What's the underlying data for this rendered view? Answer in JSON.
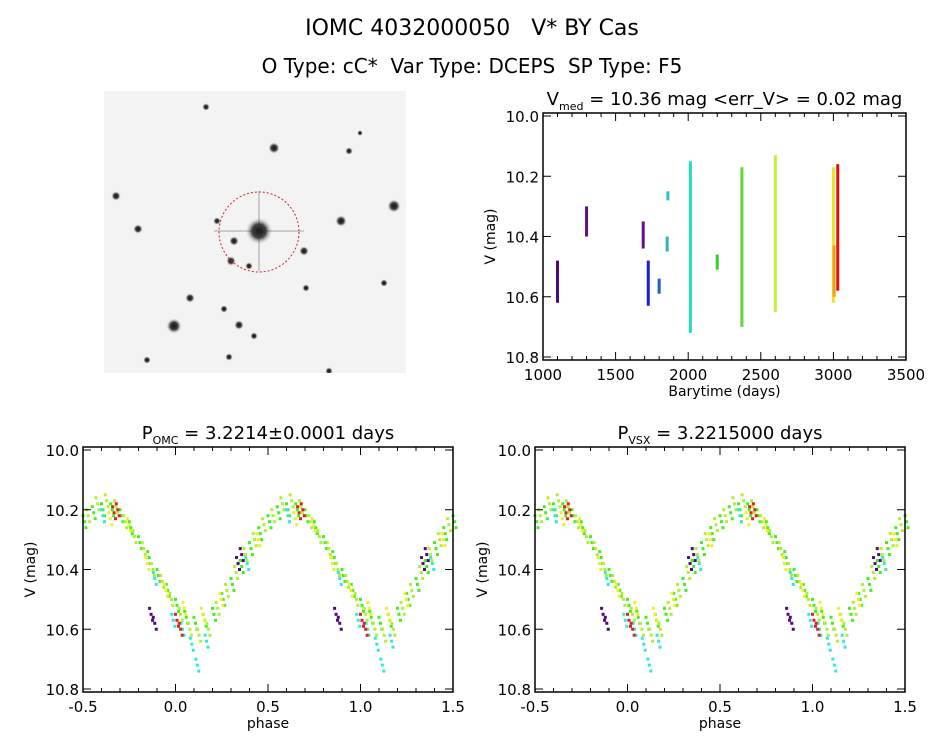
{
  "header": {
    "title": "IOMC 4032000050   V* BY Cas",
    "subtitle": "O Type: cC*  Var Type: DCEPS  SP Type: F5"
  },
  "sky_image": {
    "circle_color": "#cc2222"
  },
  "chart_data": [
    {
      "type": "scatter",
      "title_main": "V",
      "title_sub": "med",
      "title_rest": " = 10.36 mag <err_V> = 0.02 mag",
      "xlabel": "Barytime (days)",
      "ylabel": "V (mag)",
      "xlim": [
        1000,
        3500
      ],
      "ylim": [
        10.8,
        10.0
      ],
      "xticks": [
        1000,
        1500,
        2000,
        2500,
        3000,
        3500
      ],
      "yticks": [
        "10.0",
        "10.2",
        "10.4",
        "10.6",
        "10.8"
      ],
      "segments": [
        {
          "x": 1100,
          "vmin": 10.48,
          "vmax": 10.62,
          "color": "#4a0a70"
        },
        {
          "x": 1300,
          "vmin": 10.3,
          "vmax": 10.4,
          "color": "#5a1080"
        },
        {
          "x": 1690,
          "vmin": 10.35,
          "vmax": 10.44,
          "color": "#601090"
        },
        {
          "x": 1725,
          "vmin": 10.48,
          "vmax": 10.63,
          "color": "#1a20d0"
        },
        {
          "x": 1800,
          "vmin": 10.54,
          "vmax": 10.59,
          "color": "#1a60c8"
        },
        {
          "x": 1860,
          "vmin": 10.25,
          "vmax": 10.28,
          "color": "#30c0d0"
        },
        {
          "x": 1855,
          "vmin": 10.4,
          "vmax": 10.45,
          "color": "#30b0d0"
        },
        {
          "x": 2015,
          "vmin": 10.15,
          "vmax": 10.72,
          "color": "#20e0b8"
        },
        {
          "x": 2200,
          "vmin": 10.46,
          "vmax": 10.51,
          "color": "#30d030"
        },
        {
          "x": 2370,
          "vmin": 10.17,
          "vmax": 10.7,
          "color": "#60d830"
        },
        {
          "x": 2600,
          "vmin": 10.13,
          "vmax": 10.65,
          "color": "#c0f040"
        },
        {
          "x": 3000,
          "vmin": 10.17,
          "vmax": 10.62,
          "color": "#f8e020"
        },
        {
          "x": 3005,
          "vmin": 10.43,
          "vmax": 10.6,
          "color": "#f0a020"
        },
        {
          "x": 3030,
          "vmin": 10.16,
          "vmax": 10.58,
          "color": "#e01010"
        }
      ]
    },
    {
      "type": "scatter",
      "title_main": "P",
      "title_sub": "OMC",
      "title_rest": " = 3.2214±0.0001 days",
      "xlabel": "phase",
      "ylabel": "V (mag)",
      "xlim": [
        -0.5,
        1.5
      ],
      "ylim": [
        10.8,
        10.0
      ],
      "xticks": [
        "-0.5",
        "0.0",
        "0.5",
        "1.0",
        "1.5"
      ],
      "yticks": [
        "10.0",
        "10.2",
        "10.4",
        "10.6",
        "10.8"
      ],
      "series": [
        {
          "color": "#40f020",
          "points": [
            [
              0.0,
              10.52
            ],
            [
              0.05,
              10.56
            ],
            [
              0.1,
              10.58
            ],
            [
              0.15,
              10.57
            ],
            [
              0.2,
              10.55
            ],
            [
              0.25,
              10.5
            ],
            [
              0.3,
              10.45
            ],
            [
              0.35,
              10.39
            ],
            [
              0.4,
              10.33
            ],
            [
              0.45,
              10.28
            ],
            [
              0.5,
              10.24
            ],
            [
              0.55,
              10.21
            ],
            [
              0.6,
              10.2
            ],
            [
              0.65,
              10.2
            ],
            [
              0.7,
              10.22
            ],
            [
              0.75,
              10.26
            ],
            [
              0.8,
              10.31
            ],
            [
              0.85,
              10.36
            ],
            [
              0.9,
              10.42
            ],
            [
              0.95,
              10.47
            ]
          ]
        },
        {
          "color": "#b0f030",
          "points": [
            [
              0.02,
              10.55
            ],
            [
              0.07,
              10.6
            ],
            [
              0.12,
              10.62
            ],
            [
              0.17,
              10.6
            ],
            [
              0.22,
              10.53
            ],
            [
              0.27,
              10.47
            ],
            [
              0.32,
              10.41
            ],
            [
              0.37,
              10.35
            ],
            [
              0.42,
              10.3
            ],
            [
              0.47,
              10.25
            ],
            [
              0.52,
              10.22
            ],
            [
              0.57,
              10.18
            ],
            [
              0.62,
              10.17
            ],
            [
              0.67,
              10.19
            ],
            [
              0.72,
              10.24
            ],
            [
              0.77,
              10.29
            ],
            [
              0.82,
              10.33
            ],
            [
              0.87,
              10.4
            ],
            [
              0.92,
              10.44
            ],
            [
              0.97,
              10.5
            ]
          ]
        },
        {
          "color": "#30e8e0",
          "points": [
            [
              0.03,
              10.6
            ],
            [
              0.08,
              10.65
            ],
            [
              0.11,
              10.72
            ],
            [
              0.16,
              10.64
            ],
            [
              0.38,
              10.38
            ],
            [
              0.6,
              10.22
            ],
            [
              0.88,
              10.43
            ],
            [
              0.98,
              10.57
            ]
          ]
        },
        {
          "color": "#f0f020",
          "points": [
            [
              0.04,
              10.53
            ],
            [
              0.14,
              10.55
            ],
            [
              0.24,
              10.5
            ],
            [
              0.44,
              10.3
            ],
            [
              0.64,
              10.23
            ],
            [
              0.74,
              10.25
            ],
            [
              0.84,
              10.38
            ],
            [
              0.94,
              10.47
            ]
          ]
        },
        {
          "color": "#e02020",
          "points": [
            [
              0.0,
              10.57
            ],
            [
              0.02,
              10.6
            ],
            [
              0.66,
              10.21
            ],
            [
              0.68,
              10.2
            ]
          ]
        },
        {
          "color": "#500a80",
          "points": [
            [
              0.33,
              10.38
            ],
            [
              0.35,
              10.35
            ],
            [
              0.86,
              10.55
            ],
            [
              0.88,
              10.58
            ]
          ]
        }
      ]
    },
    {
      "type": "scatter",
      "title_main": "P",
      "title_sub": "VSX",
      "title_rest": " = 3.2215000 days",
      "xlabel": "phase",
      "ylabel": "V (mag)",
      "xlim": [
        -0.5,
        1.5
      ],
      "ylim": [
        10.8,
        10.0
      ],
      "xticks": [
        "-0.5",
        "0.0",
        "0.5",
        "1.0",
        "1.5"
      ],
      "yticks": [
        "10.0",
        "10.2",
        "10.4",
        "10.6",
        "10.8"
      ],
      "series": [
        {
          "color": "#40f020",
          "points": [
            [
              0.0,
              10.52
            ],
            [
              0.05,
              10.56
            ],
            [
              0.1,
              10.58
            ],
            [
              0.15,
              10.57
            ],
            [
              0.2,
              10.55
            ],
            [
              0.25,
              10.5
            ],
            [
              0.3,
              10.45
            ],
            [
              0.35,
              10.39
            ],
            [
              0.4,
              10.33
            ],
            [
              0.45,
              10.28
            ],
            [
              0.5,
              10.24
            ],
            [
              0.55,
              10.21
            ],
            [
              0.6,
              10.2
            ],
            [
              0.65,
              10.2
            ],
            [
              0.7,
              10.22
            ],
            [
              0.75,
              10.26
            ],
            [
              0.8,
              10.31
            ],
            [
              0.85,
              10.36
            ],
            [
              0.9,
              10.42
            ],
            [
              0.95,
              10.47
            ]
          ]
        },
        {
          "color": "#b0f030",
          "points": [
            [
              0.02,
              10.55
            ],
            [
              0.07,
              10.6
            ],
            [
              0.12,
              10.62
            ],
            [
              0.17,
              10.6
            ],
            [
              0.22,
              10.53
            ],
            [
              0.27,
              10.47
            ],
            [
              0.32,
              10.41
            ],
            [
              0.37,
              10.35
            ],
            [
              0.42,
              10.3
            ],
            [
              0.47,
              10.25
            ],
            [
              0.52,
              10.22
            ],
            [
              0.57,
              10.18
            ],
            [
              0.62,
              10.17
            ],
            [
              0.67,
              10.19
            ],
            [
              0.72,
              10.24
            ],
            [
              0.77,
              10.29
            ],
            [
              0.82,
              10.33
            ],
            [
              0.87,
              10.4
            ],
            [
              0.92,
              10.44
            ],
            [
              0.97,
              10.5
            ]
          ]
        },
        {
          "color": "#30e8e0",
          "points": [
            [
              0.03,
              10.6
            ],
            [
              0.08,
              10.65
            ],
            [
              0.11,
              10.72
            ],
            [
              0.16,
              10.64
            ],
            [
              0.38,
              10.38
            ],
            [
              0.6,
              10.22
            ],
            [
              0.88,
              10.43
            ],
            [
              0.98,
              10.57
            ]
          ]
        },
        {
          "color": "#f0f020",
          "points": [
            [
              0.04,
              10.53
            ],
            [
              0.14,
              10.55
            ],
            [
              0.24,
              10.5
            ],
            [
              0.44,
              10.3
            ],
            [
              0.64,
              10.23
            ],
            [
              0.74,
              10.25
            ],
            [
              0.84,
              10.38
            ],
            [
              0.94,
              10.47
            ]
          ]
        },
        {
          "color": "#e02020",
          "points": [
            [
              0.0,
              10.57
            ],
            [
              0.02,
              10.6
            ],
            [
              0.66,
              10.21
            ],
            [
              0.68,
              10.2
            ]
          ]
        },
        {
          "color": "#500a80",
          "points": [
            [
              0.33,
              10.38
            ],
            [
              0.35,
              10.35
            ],
            [
              0.86,
              10.55
            ],
            [
              0.88,
              10.58
            ]
          ]
        }
      ]
    }
  ]
}
